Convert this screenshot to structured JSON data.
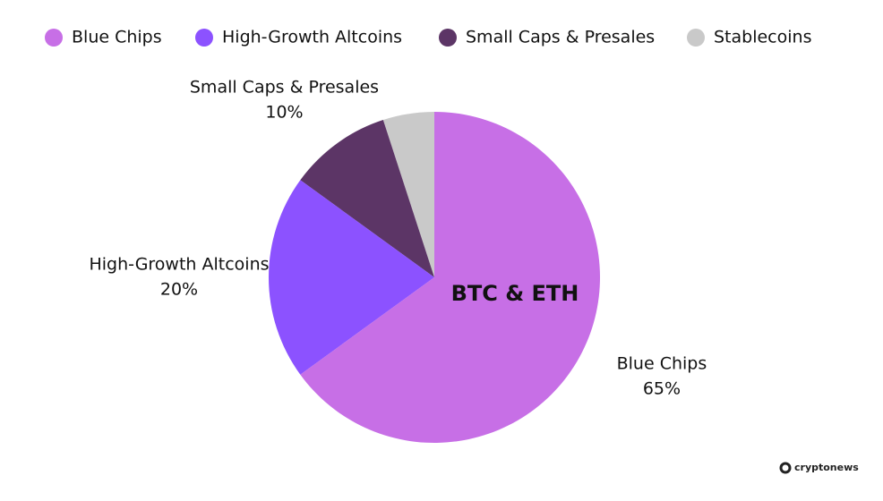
{
  "chart_data": {
    "type": "pie",
    "categories": [
      "Blue Chips",
      "High-Growth Altcoins",
      "Small Caps & Presales",
      "Stablecoins"
    ],
    "values": [
      65,
      20,
      10,
      5
    ],
    "value_labels": [
      "65%",
      "20%",
      "10%",
      null
    ],
    "colors": [
      "#c76fe6",
      "#8c52ff",
      "#5c3566",
      "#c9c9c9"
    ],
    "annotation": "BTC & ETH",
    "source": "cryptonews"
  }
}
